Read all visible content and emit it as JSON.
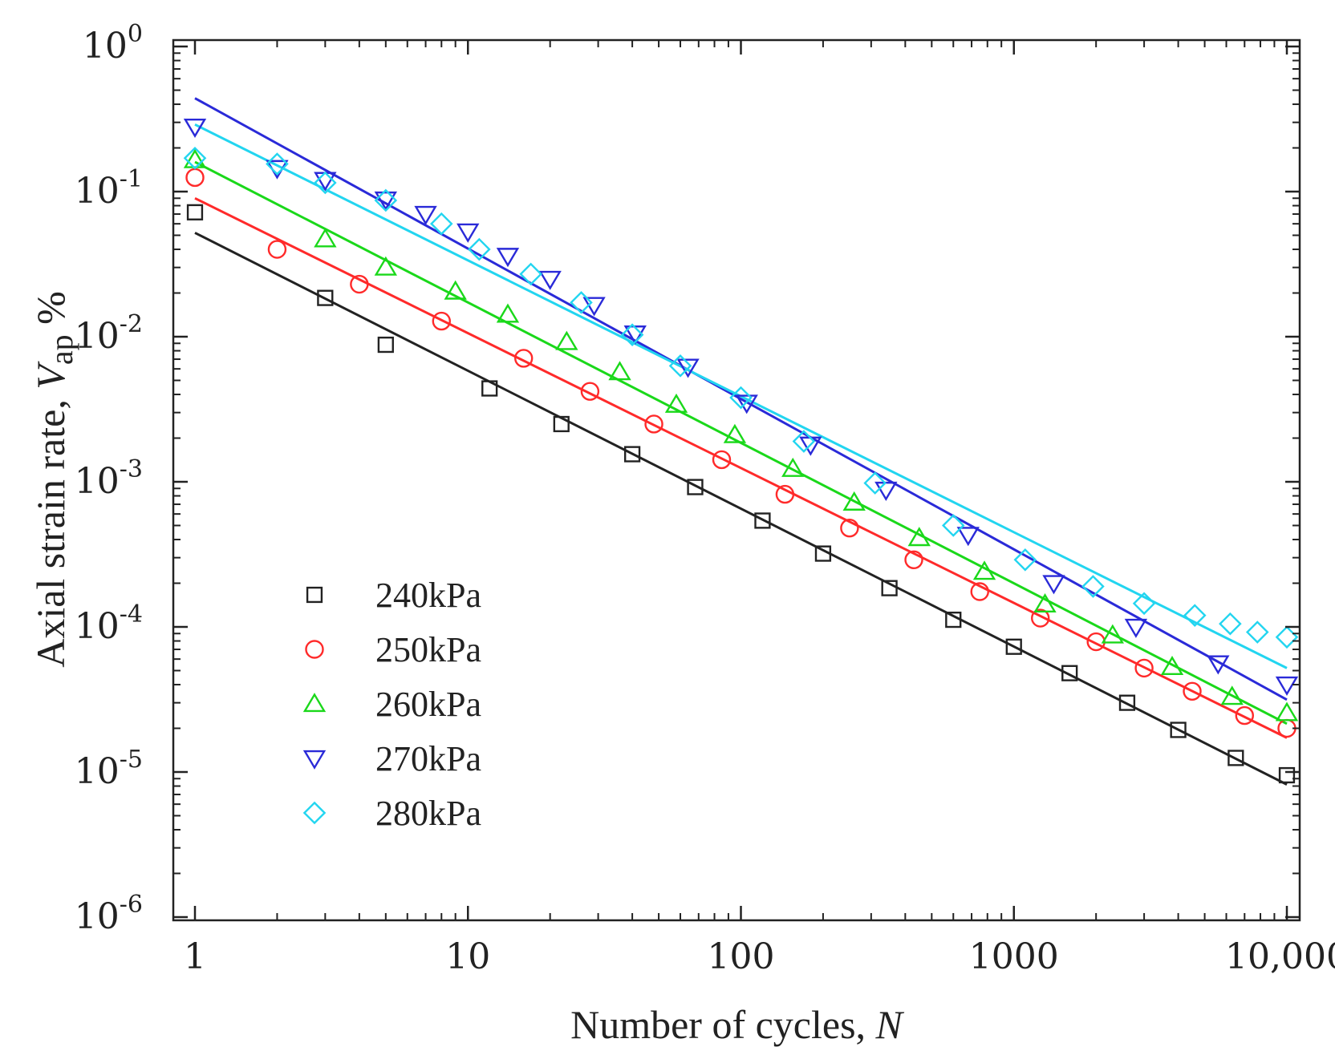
{
  "chart_data": {
    "type": "scatter",
    "xscale": "log",
    "yscale": "log",
    "xlim": [
      1,
      10000
    ],
    "ylim": [
      1e-06,
      1
    ],
    "xticks": [
      {
        "value": 1,
        "label": "1"
      },
      {
        "value": 10,
        "label": "10"
      },
      {
        "value": 100,
        "label": "100"
      },
      {
        "value": 1000,
        "label": "1000"
      },
      {
        "value": 10000,
        "label": "10,000"
      }
    ],
    "yticks": [
      {
        "value": 1,
        "base": "10",
        "exp": "0"
      },
      {
        "value": 0.1,
        "base": "10",
        "exp": "-1"
      },
      {
        "value": 0.01,
        "base": "10",
        "exp": "-2"
      },
      {
        "value": 0.001,
        "base": "10",
        "exp": "-3"
      },
      {
        "value": 0.0001,
        "base": "10",
        "exp": "-4"
      },
      {
        "value": 1e-05,
        "base": "10",
        "exp": "-5"
      },
      {
        "value": 1e-06,
        "base": "10",
        "exp": "-6"
      }
    ],
    "xlabel": {
      "text": "Number of cycles, ",
      "italic": "N"
    },
    "ylabel": {
      "text": "Axial strain rate, ",
      "italic": "V",
      "sub": "ap",
      "suffix": " %"
    },
    "legend_position": "bottom-left",
    "series": [
      {
        "name": "240kPa",
        "color": "#222222",
        "marker": "square",
        "fit": [
          [
            1,
            0.052
          ],
          [
            10000,
            8.2e-06
          ]
        ],
        "points": [
          [
            1,
            0.072
          ],
          [
            3,
            0.0185
          ],
          [
            5,
            0.0088
          ],
          [
            12,
            0.0044
          ],
          [
            22,
            0.0025
          ],
          [
            40,
            0.00155
          ],
          [
            68,
            0.00092
          ],
          [
            120,
            0.00054
          ],
          [
            200,
            0.00032
          ],
          [
            350,
            0.000185
          ],
          [
            600,
            0.000112
          ],
          [
            1000,
            7.3e-05
          ],
          [
            1600,
            4.8e-05
          ],
          [
            2600,
            3e-05
          ],
          [
            4000,
            1.95e-05
          ],
          [
            6500,
            1.25e-05
          ],
          [
            10000,
            9.5e-06
          ]
        ]
      },
      {
        "name": "250kPa",
        "color": "#ff2a2a",
        "marker": "circle",
        "fit": [
          [
            1,
            0.09
          ],
          [
            10000,
            1.72e-05
          ]
        ],
        "points": [
          [
            1,
            0.125
          ],
          [
            2,
            0.04
          ],
          [
            4,
            0.023
          ],
          [
            8,
            0.0128
          ],
          [
            16,
            0.0071
          ],
          [
            28,
            0.0042
          ],
          [
            48,
            0.0025
          ],
          [
            85,
            0.00142
          ],
          [
            145,
            0.00082
          ],
          [
            250,
            0.00048
          ],
          [
            430,
            0.00029
          ],
          [
            750,
            0.000175
          ],
          [
            1250,
            0.000115
          ],
          [
            2000,
            7.9e-05
          ],
          [
            3000,
            5.2e-05
          ],
          [
            4500,
            3.6e-05
          ],
          [
            7000,
            2.45e-05
          ],
          [
            10000,
            2e-05
          ]
        ]
      },
      {
        "name": "260kPa",
        "color": "#1ad81a",
        "marker": "triangle-up",
        "fit": [
          [
            1,
            0.16
          ],
          [
            10000,
            2.15e-05
          ]
        ],
        "points": [
          [
            1,
            0.165
          ],
          [
            3,
            0.047
          ],
          [
            5,
            0.03
          ],
          [
            9,
            0.0205
          ],
          [
            14,
            0.0142
          ],
          [
            23,
            0.0092
          ],
          [
            36,
            0.0057
          ],
          [
            58,
            0.0034
          ],
          [
            95,
            0.0021
          ],
          [
            155,
            0.00123
          ],
          [
            260,
            0.00072
          ],
          [
            450,
            0.00041
          ],
          [
            780,
            0.00024
          ],
          [
            1300,
            0.000143
          ],
          [
            2300,
            8.75e-05
          ],
          [
            3800,
            5.3e-05
          ],
          [
            6300,
            3.3e-05
          ],
          [
            10000,
            2.55e-05
          ]
        ]
      },
      {
        "name": "270kPa",
        "color": "#2a2ad8",
        "marker": "triangle-down",
        "fit": [
          [
            1,
            0.44
          ],
          [
            10000,
            3.15e-05
          ]
        ],
        "points": [
          [
            1,
            0.28
          ],
          [
            2,
            0.145
          ],
          [
            3,
            0.12
          ],
          [
            5,
            0.088
          ],
          [
            7,
            0.07
          ],
          [
            10,
            0.053
          ],
          [
            14,
            0.036
          ],
          [
            20,
            0.025
          ],
          [
            29,
            0.0165
          ],
          [
            41,
            0.0105
          ],
          [
            64,
            0.0062
          ],
          [
            105,
            0.0035
          ],
          [
            180,
            0.0018
          ],
          [
            340,
            0.00088
          ],
          [
            680,
            0.00043
          ],
          [
            1400,
            0.0002
          ],
          [
            2800,
            0.0001
          ],
          [
            5600,
            5.6e-05
          ],
          [
            10000,
            4e-05
          ]
        ]
      },
      {
        "name": "280kPa",
        "color": "#22d5f0",
        "marker": "diamond",
        "fit": [
          [
            1,
            0.29
          ],
          [
            10000,
            5.2e-05
          ]
        ],
        "points": [
          [
            1,
            0.17
          ],
          [
            2,
            0.155
          ],
          [
            3,
            0.115
          ],
          [
            5,
            0.087
          ],
          [
            8,
            0.06
          ],
          [
            11,
            0.04
          ],
          [
            17,
            0.027
          ],
          [
            26,
            0.0172
          ],
          [
            40,
            0.0103
          ],
          [
            60,
            0.0063
          ],
          [
            100,
            0.0038
          ],
          [
            170,
            0.0019
          ],
          [
            310,
            0.00098
          ],
          [
            600,
            0.0005
          ],
          [
            1100,
            0.00029
          ],
          [
            1950,
            0.00019
          ],
          [
            3000,
            0.000145
          ],
          [
            4600,
            0.00012
          ],
          [
            6200,
            0.000105
          ],
          [
            7800,
            9.2e-05
          ],
          [
            10000,
            8.5e-05
          ]
        ]
      }
    ]
  }
}
